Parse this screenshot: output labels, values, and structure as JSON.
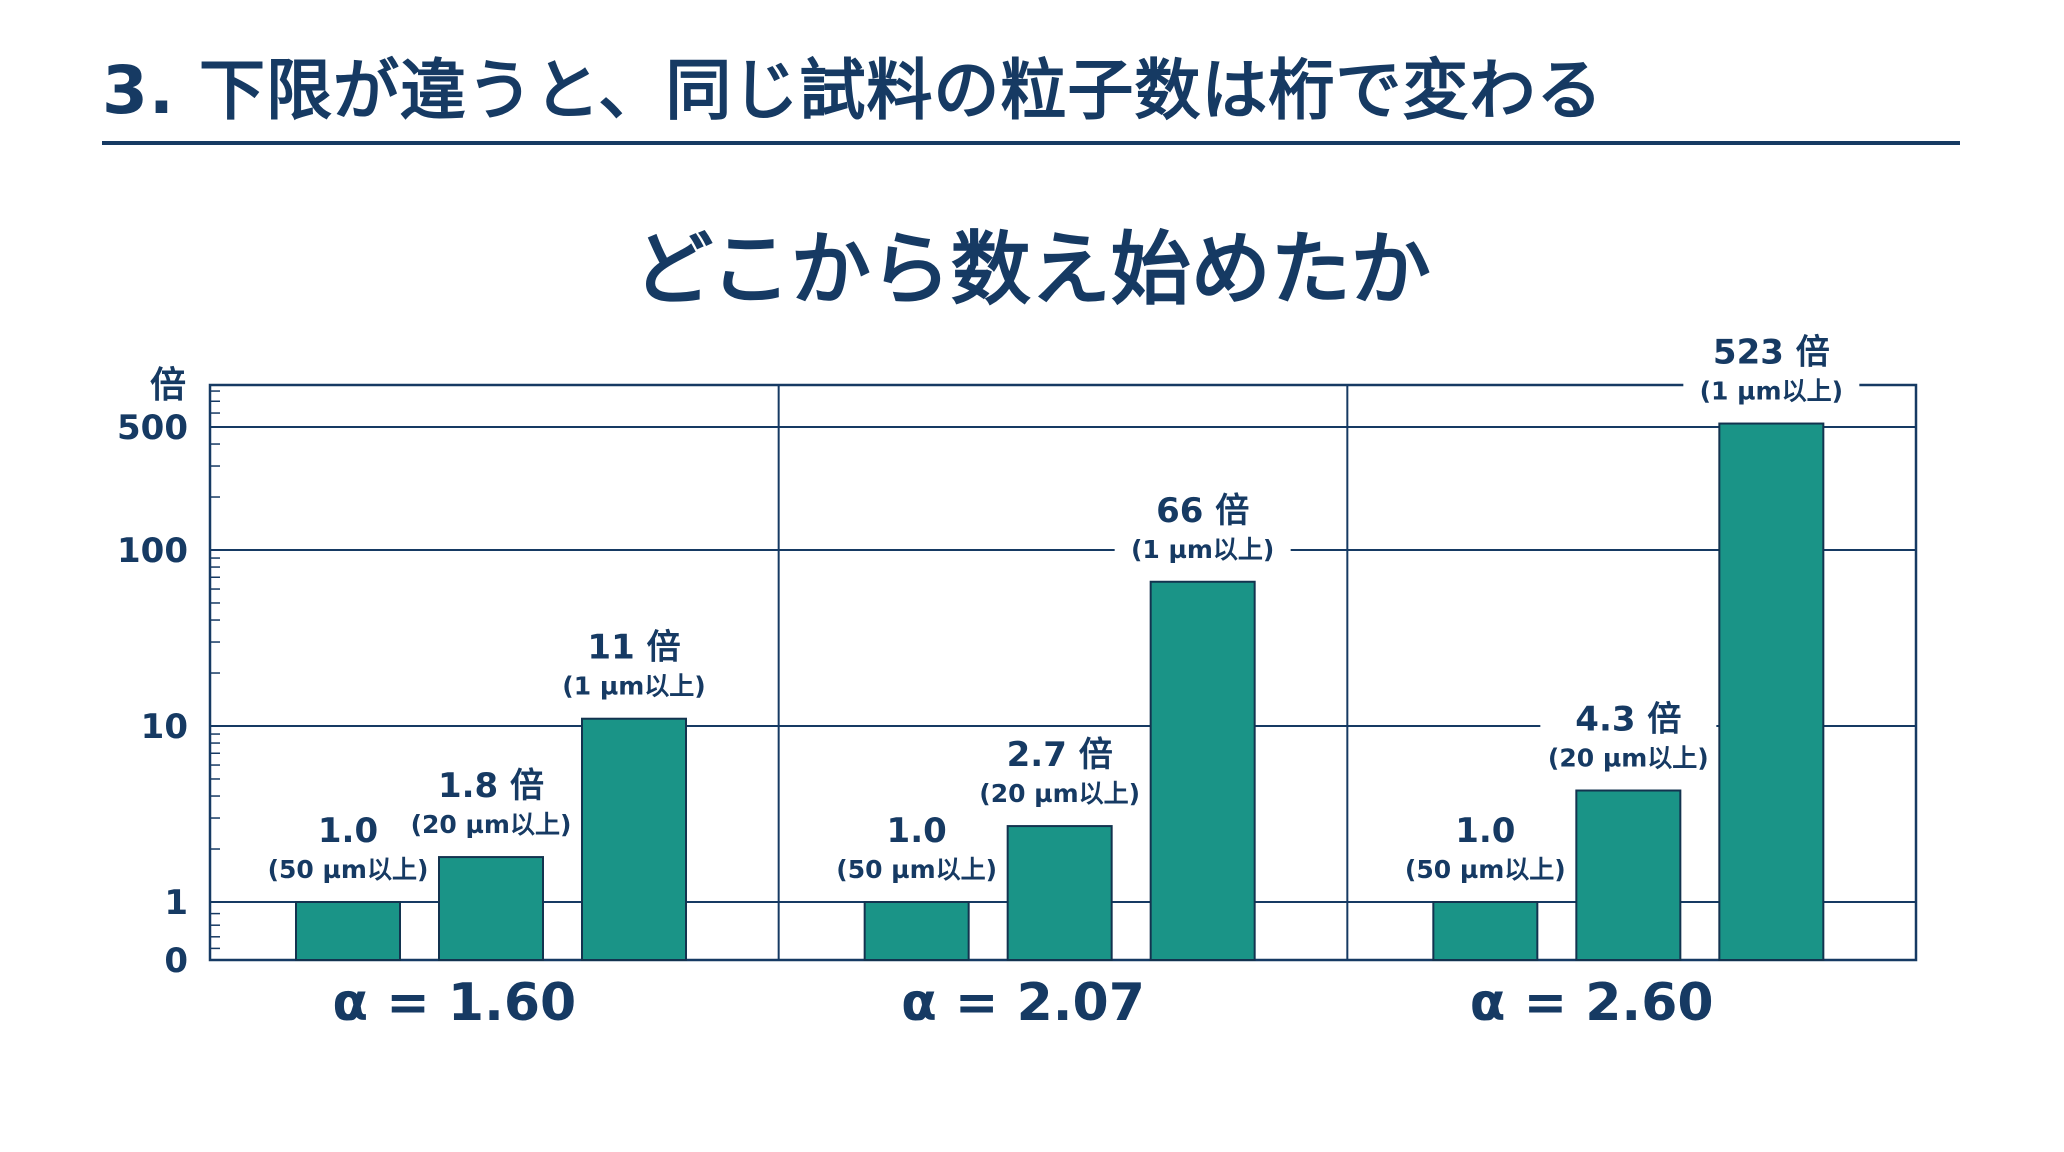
{
  "slide": {
    "title": "3. 下限が違うと、同じ試料の粒子数は桁で変わる"
  },
  "colors": {
    "bar": "#1a9487",
    "bar_edge": "#13334f",
    "text": "#163a63",
    "grid": "#163a63"
  },
  "chart_data": {
    "type": "bar",
    "title": "どこから数え始めたか",
    "ylabel": "倍",
    "yscale": "log",
    "yticks": [
      "0",
      "1",
      "10",
      "100",
      "500"
    ],
    "grid": true,
    "groups": [
      {
        "label": "α = 1.60",
        "bars": [
          {
            "value": 1.0,
            "label": "1.0",
            "sublabel": "(50 µm以上)"
          },
          {
            "value": 1.8,
            "label": "1.8 倍",
            "sublabel": "(20 µm以上)"
          },
          {
            "value": 11,
            "label": "11 倍",
            "sublabel": "(1 µm以上)"
          }
        ]
      },
      {
        "label": "α = 2.07",
        "bars": [
          {
            "value": 1.0,
            "label": "1.0",
            "sublabel": "(50 µm以上)"
          },
          {
            "value": 2.7,
            "label": "2.7 倍",
            "sublabel": "(20 µm以上)"
          },
          {
            "value": 66,
            "label": "66 倍",
            "sublabel": "(1 µm以上)"
          }
        ]
      },
      {
        "label": "α = 2.60",
        "bars": [
          {
            "value": 1.0,
            "label": "1.0",
            "sublabel": "(50 µm以上)"
          },
          {
            "value": 4.3,
            "label": "4.3 倍",
            "sublabel": "(20 µm以上)"
          },
          {
            "value": 523,
            "label": "523 倍",
            "sublabel": "(1 µm以上)"
          }
        ]
      }
    ]
  }
}
